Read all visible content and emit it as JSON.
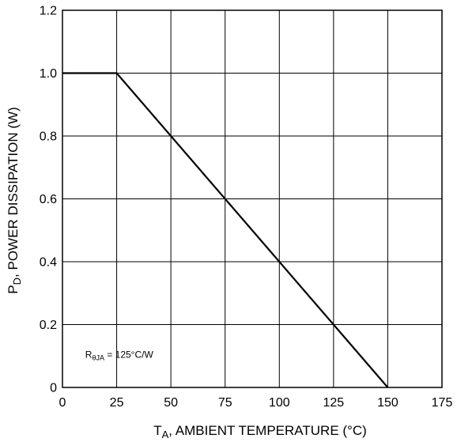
{
  "chart_data": {
    "type": "line",
    "xlabel": {
      "main": "T",
      "sub": "A",
      "rest": ", AMBIENT TEMPERATURE (°C)"
    },
    "ylabel": {
      "main": "P",
      "sub": "D",
      "rest": ", POWER DISSIPATION (W)"
    },
    "xlim": [
      0,
      175
    ],
    "ylim": [
      0,
      1.2
    ],
    "xticks": [
      0,
      25,
      50,
      75,
      100,
      125,
      150,
      175
    ],
    "xtick_labels": [
      "0",
      "25",
      "50",
      "75",
      "100",
      "125",
      "150",
      "175"
    ],
    "yticks": [
      0,
      0.2,
      0.4,
      0.6,
      0.8,
      1.0,
      1.2
    ],
    "ytick_labels": [
      "0",
      "0.2",
      "0.4",
      "0.6",
      "0.8",
      "1.0",
      "1.2"
    ],
    "grid": true,
    "series": [
      {
        "x": [
          0,
          25,
          150
        ],
        "y": [
          1.0,
          1.0,
          0
        ]
      }
    ],
    "annotation": {
      "main": "R",
      "sub": "θJA",
      "rest": " = 125°C/W"
    }
  }
}
